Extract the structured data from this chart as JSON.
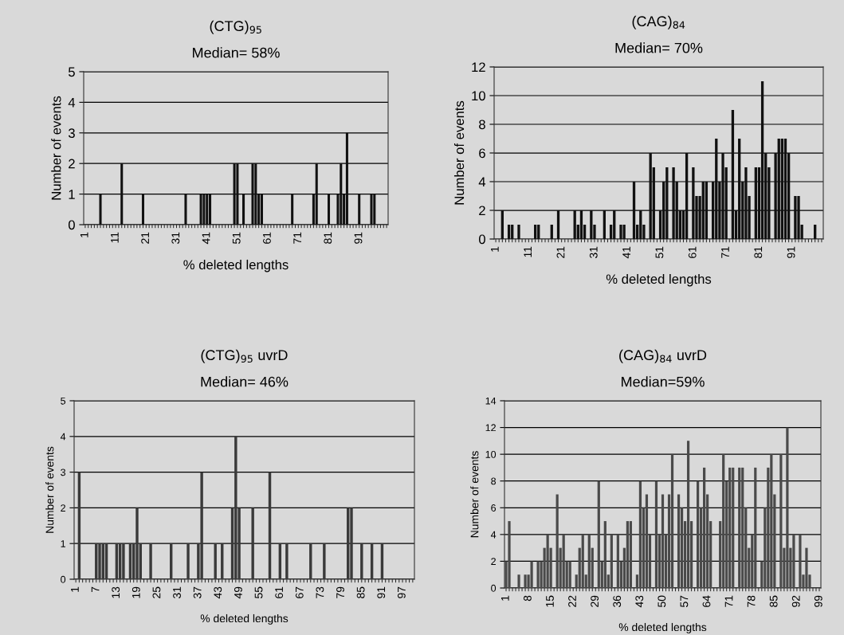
{
  "chart_data": [
    {
      "type": "bar",
      "title": "(CTG)$_{95}$",
      "subtitle": "Median= 58%",
      "xlabel": "% deleted lengths",
      "ylabel": "Number of events",
      "color": "#111111",
      "grid": "y",
      "ylim": [
        0,
        5
      ],
      "yticks": [
        0,
        1,
        2,
        3,
        4,
        5
      ],
      "categories": [
        "1",
        null,
        null,
        null,
        null,
        null,
        null,
        null,
        null,
        null,
        "11",
        null,
        null,
        null,
        null,
        null,
        null,
        null,
        null,
        null,
        "21",
        null,
        null,
        null,
        null,
        null,
        null,
        null,
        null,
        null,
        "31",
        null,
        null,
        null,
        null,
        null,
        null,
        null,
        null,
        null,
        "41",
        null,
        null,
        null,
        null,
        null,
        null,
        null,
        null,
        null,
        "51",
        null,
        null,
        null,
        null,
        null,
        null,
        null,
        null,
        null,
        "61",
        null,
        null,
        null,
        null,
        null,
        null,
        null,
        null,
        null,
        "71",
        null,
        null,
        null,
        null,
        null,
        null,
        null,
        null,
        null,
        "81",
        null,
        null,
        null,
        null,
        null,
        null,
        null,
        null,
        null,
        "91",
        null,
        null,
        null,
        null,
        null,
        null,
        null,
        null,
        null
      ],
      "values": [
        0,
        0,
        0,
        0,
        0,
        1,
        0,
        0,
        0,
        0,
        0,
        0,
        2,
        0,
        0,
        0,
        0,
        0,
        0,
        1,
        0,
        0,
        0,
        0,
        0,
        0,
        0,
        0,
        0,
        0,
        0,
        0,
        0,
        1,
        0,
        0,
        0,
        0,
        1,
        1,
        1,
        1,
        0,
        0,
        0,
        0,
        0,
        0,
        0,
        2,
        2,
        0,
        1,
        0,
        0,
        2,
        2,
        1,
        1,
        0,
        0,
        0,
        0,
        0,
        0,
        0,
        0,
        0,
        1,
        0,
        0,
        0,
        0,
        0,
        0,
        1,
        2,
        0,
        0,
        0,
        1,
        0,
        0,
        1,
        2,
        1,
        3,
        0,
        0,
        0,
        1,
        0,
        0,
        0,
        1,
        1,
        0,
        0,
        0,
        0
      ]
    },
    {
      "type": "bar",
      "title": "(CAG)$_{84}$",
      "subtitle": "Median= 70%",
      "xlabel": "% deleted lengths",
      "ylabel": "Number of events",
      "color": "#111111",
      "grid": "y",
      "ylim": [
        0,
        12
      ],
      "yticks": [
        0,
        2,
        4,
        6,
        8,
        10,
        12
      ],
      "categories": [
        "1",
        null,
        null,
        null,
        null,
        null,
        null,
        null,
        null,
        null,
        "11",
        null,
        null,
        null,
        null,
        null,
        null,
        null,
        null,
        null,
        "21",
        null,
        null,
        null,
        null,
        null,
        null,
        null,
        null,
        null,
        "31",
        null,
        null,
        null,
        null,
        null,
        null,
        null,
        null,
        null,
        "41",
        null,
        null,
        null,
        null,
        null,
        null,
        null,
        null,
        null,
        "51",
        null,
        null,
        null,
        null,
        null,
        null,
        null,
        null,
        null,
        "61",
        null,
        null,
        null,
        null,
        null,
        null,
        null,
        null,
        null,
        "71",
        null,
        null,
        null,
        null,
        null,
        null,
        null,
        null,
        null,
        "81",
        null,
        null,
        null,
        null,
        null,
        null,
        null,
        null,
        null,
        "91",
        null,
        null,
        null,
        null,
        null,
        null,
        null,
        null,
        null
      ],
      "values": [
        0,
        0,
        2,
        0,
        1,
        1,
        0,
        1,
        0,
        0,
        0,
        0,
        1,
        1,
        0,
        0,
        0,
        1,
        0,
        2,
        0,
        0,
        0,
        0,
        2,
        1,
        2,
        1,
        0,
        2,
        1,
        0,
        0,
        2,
        0,
        1,
        2,
        0,
        1,
        1,
        0,
        0,
        4,
        1,
        2,
        1,
        0,
        6,
        5,
        0,
        2,
        4,
        5,
        0,
        5,
        4,
        2,
        2,
        6,
        0,
        5,
        3,
        3,
        4,
        4,
        0,
        4,
        7,
        4,
        6,
        5,
        0,
        9,
        2,
        7,
        4,
        5,
        3,
        0,
        5,
        5,
        11,
        6,
        5,
        0,
        6,
        7,
        7,
        7,
        6,
        0,
        3,
        3,
        1,
        0,
        0,
        0,
        1,
        0,
        0
      ]
    },
    {
      "type": "bar",
      "title": "(CTG)$_{95}$ uvrD",
      "subtitle": "Median= 46%",
      "xlabel": "% deleted lengths",
      "ylabel": "Number of events",
      "color": "#3a3a3a",
      "grid": "y",
      "ylim": [
        0,
        5
      ],
      "yticks": [
        0,
        1,
        2,
        3,
        4,
        5
      ],
      "categories": [
        "1",
        null,
        null,
        null,
        null,
        null,
        "7",
        null,
        null,
        null,
        null,
        null,
        "13",
        null,
        null,
        null,
        null,
        null,
        "19",
        null,
        null,
        null,
        null,
        null,
        "25",
        null,
        null,
        null,
        null,
        null,
        "31",
        null,
        null,
        null,
        null,
        null,
        "37",
        null,
        null,
        null,
        null,
        null,
        "43",
        null,
        null,
        null,
        null,
        null,
        "49",
        null,
        null,
        null,
        null,
        null,
        "55",
        null,
        null,
        null,
        null,
        null,
        "61",
        null,
        null,
        null,
        null,
        null,
        "67",
        null,
        null,
        null,
        null,
        null,
        "73",
        null,
        null,
        null,
        null,
        null,
        "79",
        null,
        null,
        null,
        null,
        null,
        "85",
        null,
        null,
        null,
        null,
        null,
        "91",
        null,
        null,
        null,
        null,
        null,
        "97",
        null,
        null,
        null
      ],
      "values": [
        0,
        3,
        0,
        0,
        0,
        0,
        1,
        1,
        1,
        1,
        0,
        0,
        1,
        1,
        1,
        0,
        1,
        1,
        2,
        1,
        0,
        0,
        1,
        0,
        0,
        0,
        0,
        0,
        1,
        0,
        0,
        0,
        0,
        1,
        0,
        0,
        1,
        3,
        0,
        0,
        0,
        1,
        0,
        1,
        0,
        0,
        2,
        4,
        2,
        0,
        0,
        0,
        2,
        0,
        0,
        0,
        0,
        3,
        0,
        0,
        1,
        0,
        1,
        0,
        0,
        0,
        0,
        0,
        0,
        1,
        0,
        0,
        0,
        1,
        0,
        0,
        0,
        0,
        0,
        0,
        2,
        2,
        0,
        0,
        1,
        0,
        0,
        1,
        0,
        0,
        1,
        0,
        0,
        0,
        0,
        0,
        0,
        0,
        0,
        0
      ]
    },
    {
      "type": "bar",
      "title": "(CAG)$_{84}$ uvrD",
      "subtitle": "Median=59%",
      "xlabel": "% deleted lengths",
      "ylabel": "Number of events",
      "color": "#4a4a4a",
      "grid": "y",
      "ylim": [
        0,
        14
      ],
      "yticks": [
        0,
        2,
        4,
        6,
        8,
        10,
        12,
        14
      ],
      "categories": [
        "1",
        null,
        null,
        null,
        null,
        null,
        null,
        "8",
        null,
        null,
        null,
        null,
        null,
        null,
        "15",
        null,
        null,
        null,
        null,
        null,
        null,
        "22",
        null,
        null,
        null,
        null,
        null,
        null,
        "29",
        null,
        null,
        null,
        null,
        null,
        null,
        "36",
        null,
        null,
        null,
        null,
        null,
        null,
        "43",
        null,
        null,
        null,
        null,
        null,
        null,
        "50",
        null,
        null,
        null,
        null,
        null,
        null,
        "57",
        null,
        null,
        null,
        null,
        null,
        null,
        "64",
        null,
        null,
        null,
        null,
        null,
        null,
        "71",
        null,
        null,
        null,
        null,
        null,
        null,
        "78",
        null,
        null,
        null,
        null,
        null,
        null,
        "85",
        null,
        null,
        null,
        null,
        null,
        null,
        "92",
        null,
        null,
        null,
        null,
        null,
        null,
        "99"
      ],
      "values": [
        2,
        5,
        0,
        0,
        1,
        0,
        1,
        1,
        2,
        0,
        2,
        2,
        3,
        4,
        3,
        0,
        7,
        3,
        4,
        2,
        2,
        0,
        1,
        3,
        4,
        1,
        4,
        3,
        0,
        8,
        2,
        5,
        1,
        4,
        0,
        4,
        2,
        3,
        5,
        5,
        0,
        1,
        8,
        6,
        7,
        4,
        0,
        8,
        4,
        7,
        4,
        7,
        10,
        0,
        7,
        6,
        5,
        11,
        5,
        0,
        8,
        6,
        9,
        7,
        5,
        0,
        0,
        5,
        10,
        8,
        9,
        9,
        0,
        9,
        9,
        6,
        3,
        4,
        9,
        0,
        2,
        6,
        9,
        10,
        7,
        0,
        10,
        3,
        12,
        3,
        4,
        0,
        4,
        1,
        3,
        1,
        0,
        0,
        0
      ]
    }
  ]
}
